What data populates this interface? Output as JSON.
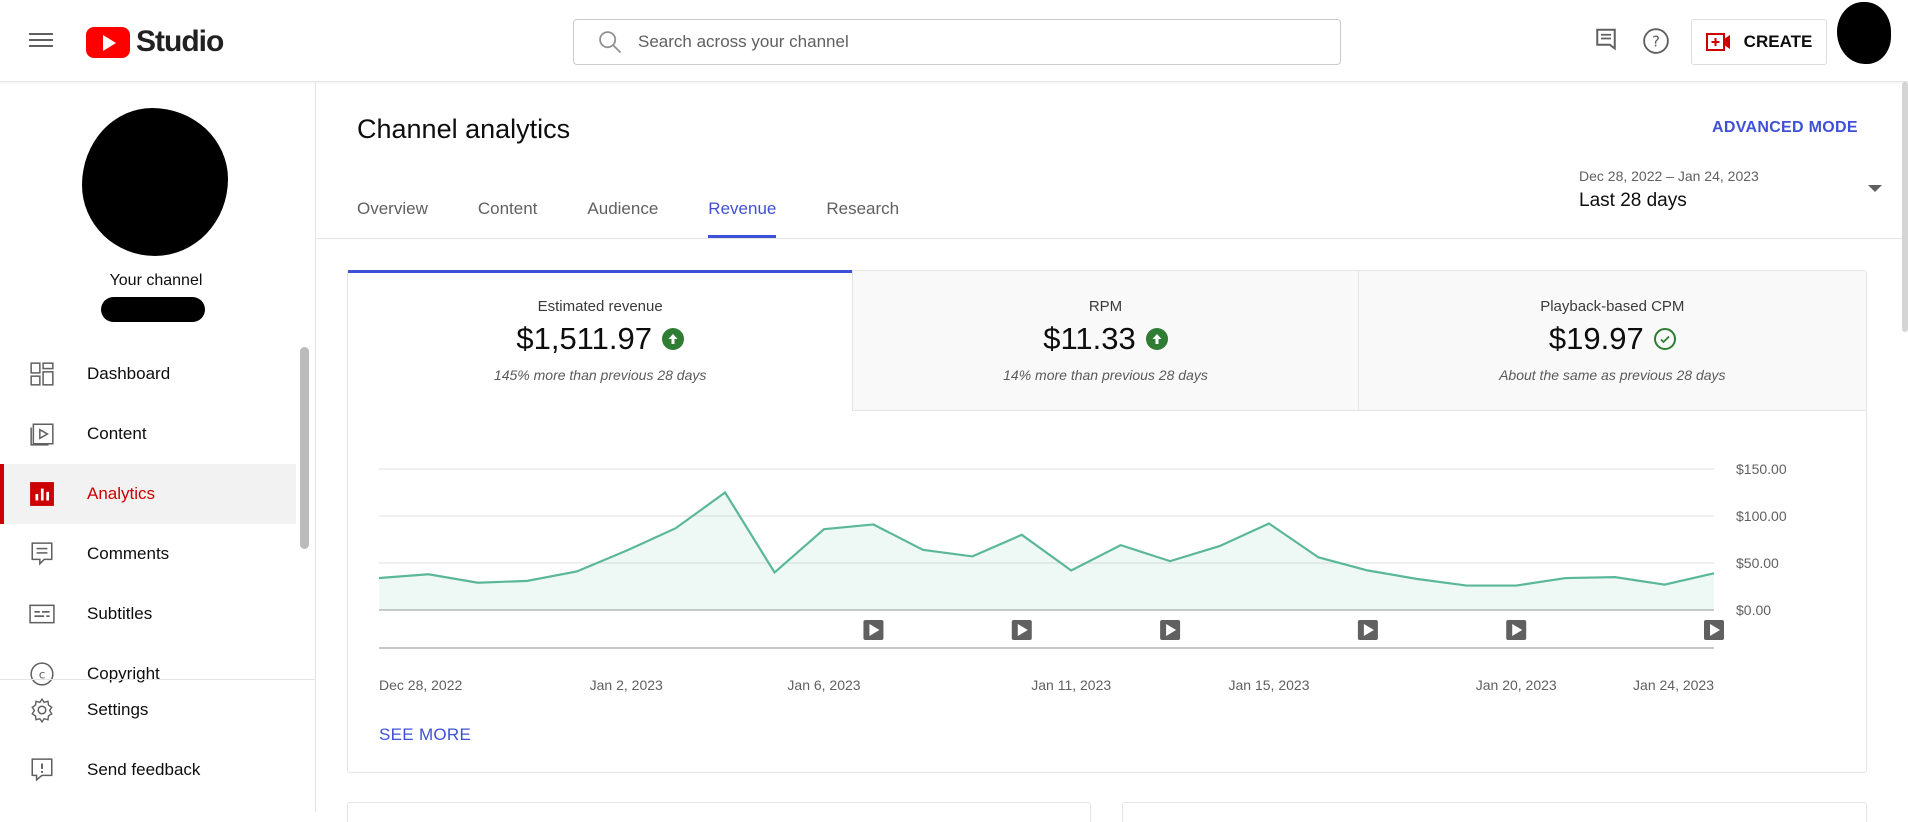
{
  "app": {
    "title": "Studio"
  },
  "search": {
    "placeholder": "Search across your channel"
  },
  "header": {
    "create_label": "CREATE"
  },
  "sidebar": {
    "your_channel": "Your channel",
    "items": [
      {
        "label": "Dashboard",
        "icon": "dashboard-icon"
      },
      {
        "label": "Content",
        "icon": "content-icon"
      },
      {
        "label": "Analytics",
        "icon": "analytics-icon",
        "active": true
      },
      {
        "label": "Comments",
        "icon": "comments-icon"
      },
      {
        "label": "Subtitles",
        "icon": "subtitles-icon"
      },
      {
        "label": "Copyright",
        "icon": "copyright-icon"
      }
    ],
    "bottom_items": [
      {
        "label": "Settings",
        "icon": "gear-icon"
      },
      {
        "label": "Send feedback",
        "icon": "feedback-icon"
      }
    ]
  },
  "main": {
    "title": "Channel analytics",
    "advanced_mode": "ADVANCED MODE",
    "tabs": [
      "Overview",
      "Content",
      "Audience",
      "Revenue",
      "Research"
    ],
    "active_tab": "Revenue",
    "date_range": "Dec 28, 2022 – Jan 24, 2023",
    "date_label": "Last 28 days",
    "metrics": [
      {
        "label": "Estimated revenue",
        "value": "$1,511.97",
        "note": "145% more than previous 28 days",
        "status": "up"
      },
      {
        "label": "RPM",
        "value": "$11.33",
        "note": "14% more than previous 28 days",
        "status": "up"
      },
      {
        "label": "Playback-based CPM",
        "value": "$19.97",
        "note": "About the same as previous 28 days",
        "status": "same"
      }
    ],
    "see_more": "SEE MORE"
  },
  "colors": {
    "accent": "#3e51d6",
    "brand_red": "#ff0000",
    "active_red": "#cc0000",
    "series": "#5bb79a",
    "up_green": "#2e7d32"
  },
  "chart_data": {
    "type": "area",
    "x": [
      "Dec 28, 2022",
      "Dec 29, 2022",
      "Dec 30, 2022",
      "Dec 31, 2022",
      "Jan 1, 2023",
      "Jan 2, 2023",
      "Jan 3, 2023",
      "Jan 4, 2023",
      "Jan 5, 2023",
      "Jan 6, 2023",
      "Jan 7, 2023",
      "Jan 8, 2023",
      "Jan 9, 2023",
      "Jan 10, 2023",
      "Jan 11, 2023",
      "Jan 12, 2023",
      "Jan 13, 2023",
      "Jan 14, 2023",
      "Jan 15, 2023",
      "Jan 16, 2023",
      "Jan 17, 2023",
      "Jan 18, 2023",
      "Jan 19, 2023",
      "Jan 20, 2023",
      "Jan 21, 2023",
      "Jan 22, 2023",
      "Jan 23, 2023",
      "Jan 24, 2023"
    ],
    "series": [
      {
        "values": [
          34,
          38,
          29,
          31,
          41,
          63,
          87,
          125,
          40,
          86,
          91,
          64,
          57,
          80,
          42,
          69,
          52,
          68,
          92,
          56,
          42,
          33,
          26,
          26,
          34,
          35,
          27,
          39
        ]
      }
    ],
    "x_tick_labels": [
      "Dec 28, 2022",
      "Jan 2, 2023",
      "Jan 6, 2023",
      "Jan 11, 2023",
      "Jan 15, 2023",
      "Jan 20, 2023",
      "Jan 24, 2023"
    ],
    "y_tick_labels": [
      "$150.00",
      "$100.00",
      "$50.00",
      "$0.00"
    ],
    "y_ticks": [
      150,
      100,
      50,
      0
    ],
    "ylim": [
      0,
      150
    ],
    "video_markers": [
      "Jan 7, 2023",
      "Jan 10, 2023",
      "Jan 13, 2023",
      "Jan 17, 2023",
      "Jan 20, 2023",
      "Jan 24, 2023"
    ],
    "grid": true
  }
}
